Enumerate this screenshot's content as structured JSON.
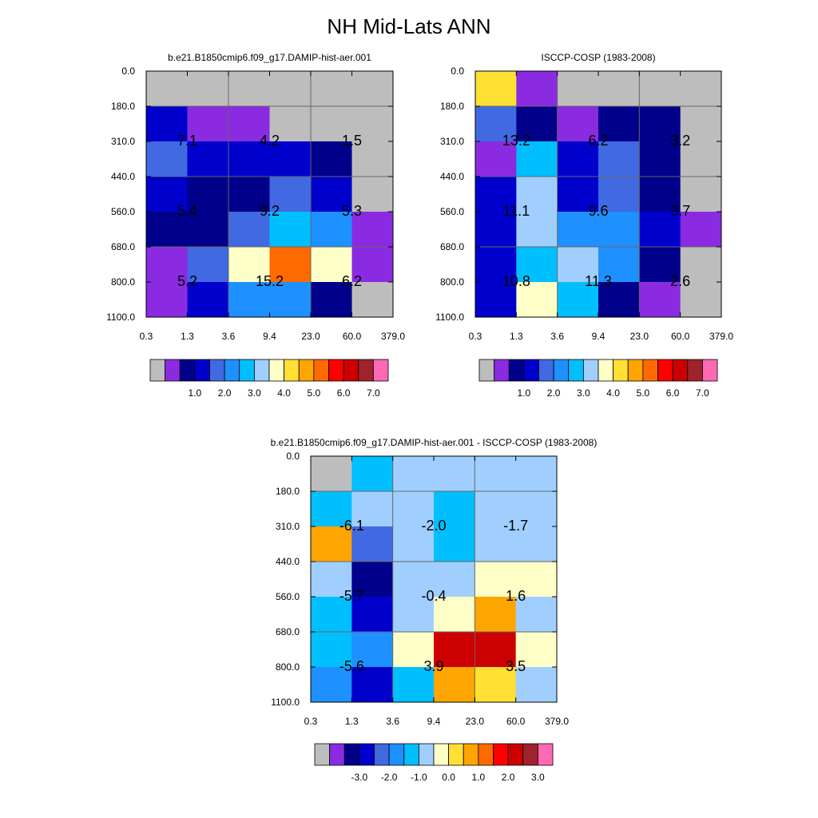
{
  "title": "NH Mid-Lats ANN",
  "colors": {
    "palette": [
      "#bdbdbd",
      "#8a2be2",
      "#00008b",
      "#0000cd",
      "#4169e1",
      "#1e90ff",
      "#00bfff",
      "#a0cfff",
      "#ffffc8",
      "#ffe033",
      "#ffa500",
      "#ff6a00",
      "#ff0000",
      "#cc0000",
      "#a0222a",
      "#ff69b4"
    ],
    "cell_border": "#000000",
    "grid_line": "#666666"
  },
  "chart_data": [
    {
      "type": "heatmap",
      "title": "b.e21.B1850cmip6.f09_g17.DAMIP-hist-aer.001",
      "x_ticks": [
        "0.3",
        "1.3",
        "3.6",
        "9.4",
        "23.0",
        "60.0",
        "379.0"
      ],
      "y_ticks": [
        "0.0",
        "180.0",
        "310.0",
        "440.0",
        "560.0",
        "680.0",
        "800.0",
        "1100.0"
      ],
      "cells": [
        [
          0,
          0,
          0,
          0,
          0,
          0
        ],
        [
          3,
          1,
          1,
          0,
          0,
          0
        ],
        [
          4,
          3,
          3,
          3,
          2,
          0
        ],
        [
          3,
          2,
          2,
          4,
          3,
          0
        ],
        [
          2,
          2,
          4,
          6,
          5,
          1
        ],
        [
          1,
          4,
          8,
          11,
          8,
          1
        ],
        [
          1,
          3,
          5,
          5,
          2,
          0
        ]
      ],
      "annotations": [
        {
          "row": 2,
          "col": 1,
          "text": "7.1"
        },
        {
          "row": 2,
          "col": 3,
          "text": "4.2"
        },
        {
          "row": 2,
          "col": 5,
          "text": "1.5"
        },
        {
          "row": 4,
          "col": 1,
          "text": "5.4"
        },
        {
          "row": 4,
          "col": 3,
          "text": "9.2"
        },
        {
          "row": 4,
          "col": 5,
          "text": "5.3"
        },
        {
          "row": 6,
          "col": 1,
          "text": "5.2"
        },
        {
          "row": 6,
          "col": 3,
          "text": "15.2"
        },
        {
          "row": 6,
          "col": 5,
          "text": "6.2"
        }
      ],
      "colorbar_labels": [
        "1.0",
        "2.0",
        "3.0",
        "4.0",
        "5.0",
        "6.0",
        "7.0"
      ]
    },
    {
      "type": "heatmap",
      "title": "ISCCP-COSP (1983-2008)",
      "x_ticks": [
        "0.3",
        "1.3",
        "3.6",
        "9.4",
        "23.0",
        "60.0",
        "379.0"
      ],
      "y_ticks": [
        "0.0",
        "180.0",
        "310.0",
        "440.0",
        "560.0",
        "680.0",
        "800.0",
        "1100.0"
      ],
      "cells": [
        [
          9,
          1,
          0,
          0,
          0,
          0
        ],
        [
          4,
          2,
          1,
          2,
          2,
          0
        ],
        [
          1,
          6,
          3,
          4,
          2,
          0
        ],
        [
          3,
          7,
          3,
          4,
          2,
          0
        ],
        [
          3,
          7,
          5,
          5,
          3,
          1
        ],
        [
          3,
          6,
          7,
          5,
          2,
          0
        ],
        [
          3,
          8,
          6,
          2,
          1,
          0
        ]
      ],
      "annotations": [
        {
          "row": 2,
          "col": 1,
          "text": "13.2"
        },
        {
          "row": 2,
          "col": 3,
          "text": "6.2"
        },
        {
          "row": 2,
          "col": 5,
          "text": "3.2"
        },
        {
          "row": 4,
          "col": 1,
          "text": "11.1"
        },
        {
          "row": 4,
          "col": 3,
          "text": "9.6"
        },
        {
          "row": 4,
          "col": 5,
          "text": "3.7"
        },
        {
          "row": 6,
          "col": 1,
          "text": "10.8"
        },
        {
          "row": 6,
          "col": 3,
          "text": "11.3"
        },
        {
          "row": 6,
          "col": 5,
          "text": "2.6"
        }
      ],
      "colorbar_labels": [
        "1.0",
        "2.0",
        "3.0",
        "4.0",
        "5.0",
        "6.0",
        "7.0"
      ]
    },
    {
      "type": "heatmap",
      "title": "b.e21.B1850cmip6.f09_g17.DAMIP-hist-aer.001 - ISCCP-COSP (1983-2008)",
      "x_ticks": [
        "0.3",
        "1.3",
        "3.6",
        "9.4",
        "23.0",
        "60.0",
        "379.0"
      ],
      "y_ticks": [
        "0.0",
        "180.0",
        "310.0",
        "440.0",
        "560.0",
        "680.0",
        "800.0",
        "1100.0"
      ],
      "cells": [
        [
          0,
          6,
          7,
          7,
          7,
          7
        ],
        [
          6,
          7,
          7,
          6,
          7,
          7
        ],
        [
          10,
          4,
          7,
          6,
          7,
          7
        ],
        [
          7,
          2,
          7,
          7,
          8,
          8
        ],
        [
          6,
          3,
          7,
          8,
          10,
          7
        ],
        [
          6,
          5,
          8,
          13,
          13,
          8
        ],
        [
          5,
          3,
          6,
          10,
          9,
          7
        ]
      ],
      "annotations": [
        {
          "row": 2,
          "col": 1,
          "text": "-6.1"
        },
        {
          "row": 2,
          "col": 3,
          "text": "-2.0"
        },
        {
          "row": 2,
          "col": 5,
          "text": "-1.7"
        },
        {
          "row": 4,
          "col": 1,
          "text": "-5.7"
        },
        {
          "row": 4,
          "col": 3,
          "text": "-0.4"
        },
        {
          "row": 4,
          "col": 5,
          "text": "1.6"
        },
        {
          "row": 6,
          "col": 1,
          "text": "-5.6"
        },
        {
          "row": 6,
          "col": 3,
          "text": "3.9"
        },
        {
          "row": 6,
          "col": 5,
          "text": "3.5"
        }
      ],
      "colorbar_labels": [
        "-3.0",
        "-2.0",
        "-1.0",
        "0.0",
        "1.0",
        "2.0",
        "3.0"
      ]
    }
  ]
}
